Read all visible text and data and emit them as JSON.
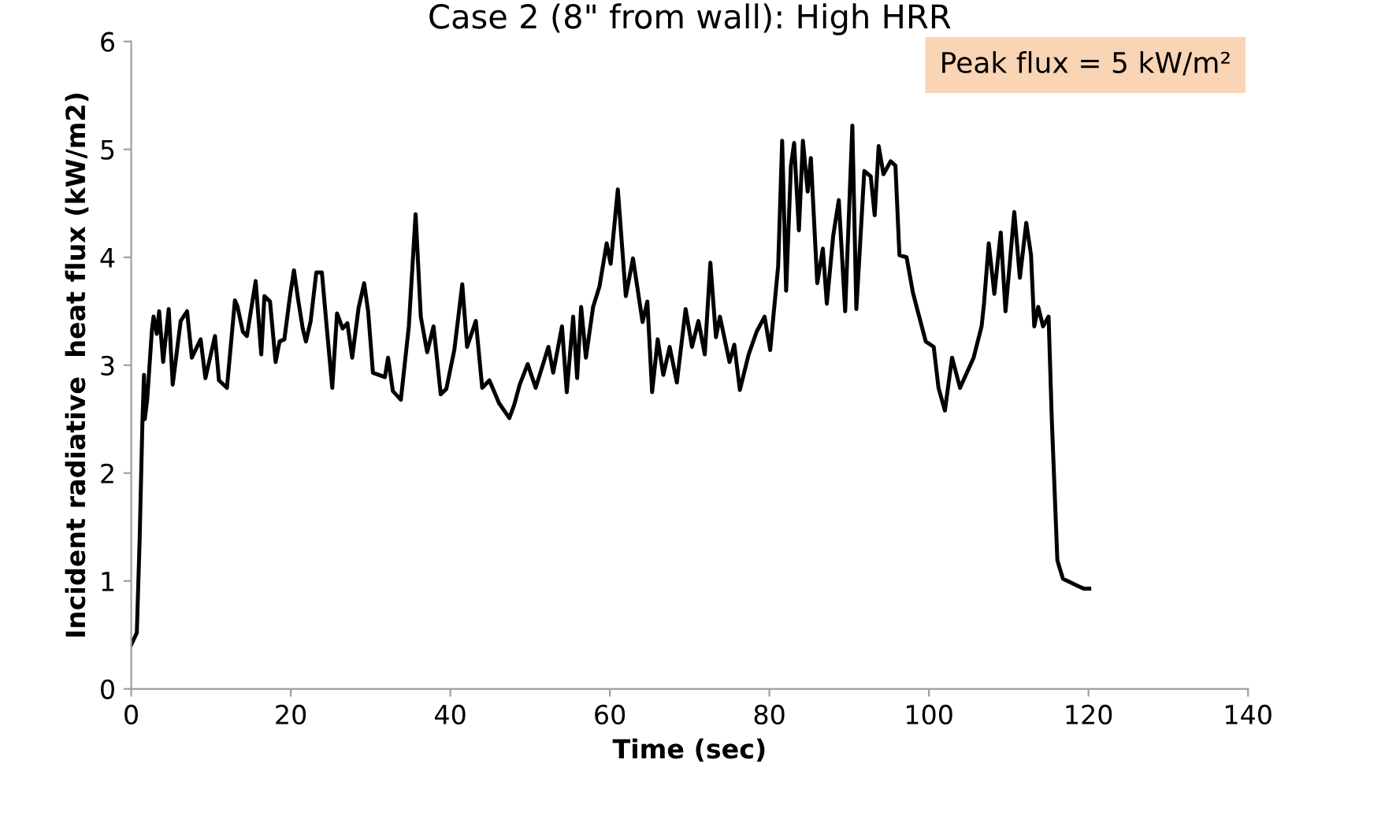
{
  "chart_data": {
    "type": "line",
    "title": "Case 2 (8\" from wall): High HRR",
    "xlabel": "Time (sec)",
    "ylabel": "Incident radiative  heat flux (kW/m2)",
    "annotations": [
      "Peak flux = 5 kW/m²"
    ],
    "xlim": [
      0,
      140
    ],
    "xticks": [
      0,
      20,
      40,
      60,
      80,
      100,
      120,
      140
    ],
    "ylim": [
      0,
      6
    ],
    "yticks": [
      0,
      1,
      2,
      3,
      4,
      5,
      6
    ],
    "grid": false,
    "marker": "none",
    "line_style": "solid",
    "series": [
      {
        "color": "#000000",
        "x": [
          0,
          0.7,
          1.05,
          1.4,
          1.6,
          1.7,
          2.0,
          2.6,
          2.8,
          3.2,
          3.5,
          4.0,
          4.7,
          5.2,
          6.2,
          7.0,
          7.6,
          8.7,
          9.3,
          10.5,
          11.0,
          12.0,
          13.0,
          13.3,
          14.0,
          14.5,
          15.6,
          16.3,
          16.7,
          17.4,
          18.1,
          18.6,
          19.2,
          19.9,
          20.4,
          20.9,
          21.5,
          21.9,
          22.5,
          23.2,
          23.9,
          24.5,
          25.2,
          25.8,
          26.5,
          27.1,
          27.7,
          28.5,
          29.2,
          29.7,
          30.3,
          31.8,
          32.2,
          32.8,
          33.8,
          34.8,
          35.65,
          36.3,
          37.1,
          37.9,
          38.8,
          39.5,
          40.5,
          41.5,
          42.1,
          43.2,
          44.0,
          44.9,
          46.1,
          47.4,
          48.0,
          48.7,
          49.7,
          50.7,
          52.3,
          52.9,
          54.0,
          54.6,
          55.4,
          55.9,
          56.4,
          57.0,
          57.9,
          58.7,
          59.6,
          60.1,
          61.0,
          62.0,
          62.9,
          64.1,
          64.7,
          65.3,
          66.0,
          66.7,
          67.5,
          68.4,
          69.5,
          70.3,
          71.1,
          71.9,
          72.6,
          73.3,
          73.8,
          75.0,
          75.6,
          76.3,
          77.4,
          78.4,
          79.4,
          80.1,
          81.1,
          81.6,
          82.1,
          82.7,
          83.1,
          83.7,
          84.2,
          84.8,
          85.2,
          86.0,
          86.7,
          87.2,
          88.0,
          88.7,
          89.5,
          90.4,
          90.9,
          91.9,
          92.7,
          93.2,
          93.7,
          94.3,
          95.2,
          95.8,
          96.3,
          97.2,
          98.0,
          98.6,
          99.6,
          100.6,
          101.2,
          102.0,
          102.9,
          103.9,
          105.6,
          106.6,
          106.9,
          107.5,
          108.2,
          109.0,
          109.6,
          110.7,
          111.4,
          112.2,
          112.8,
          113.2,
          113.7,
          114.3,
          115.0,
          115.4,
          116.1,
          116.8,
          118.8,
          119.4,
          120.1
        ],
        "values": [
          0.41,
          0.52,
          1.37,
          2.46,
          2.91,
          2.5,
          2.68,
          3.33,
          3.45,
          3.29,
          3.5,
          3.03,
          3.52,
          2.82,
          3.41,
          3.5,
          3.07,
          3.24,
          2.88,
          3.27,
          2.86,
          2.79,
          3.6,
          3.55,
          3.31,
          3.27,
          3.78,
          3.1,
          3.64,
          3.59,
          3.03,
          3.22,
          3.24,
          3.64,
          3.88,
          3.62,
          3.34,
          3.22,
          3.41,
          3.86,
          3.86,
          3.36,
          2.79,
          3.48,
          3.34,
          3.39,
          3.07,
          3.53,
          3.76,
          3.5,
          2.93,
          2.89,
          3.07,
          2.76,
          2.68,
          3.36,
          4.4,
          3.45,
          3.12,
          3.36,
          2.73,
          2.78,
          3.14,
          3.75,
          3.17,
          3.41,
          2.79,
          2.86,
          2.65,
          2.51,
          2.63,
          2.82,
          3.01,
          2.79,
          3.17,
          2.93,
          3.36,
          2.75,
          3.45,
          2.88,
          3.54,
          3.07,
          3.54,
          3.73,
          4.13,
          3.94,
          4.63,
          3.64,
          3.99,
          3.4,
          3.59,
          2.75,
          3.24,
          2.91,
          3.17,
          2.84,
          3.52,
          3.17,
          3.41,
          3.1,
          3.95,
          3.26,
          3.45,
          3.03,
          3.19,
          2.77,
          3.1,
          3.31,
          3.45,
          3.14,
          3.92,
          5.08,
          3.69,
          4.85,
          5.06,
          4.25,
          5.08,
          4.61,
          4.92,
          3.76,
          4.08,
          3.57,
          4.2,
          4.53,
          3.5,
          5.22,
          3.52,
          4.8,
          4.75,
          4.39,
          5.03,
          4.77,
          4.89,
          4.85,
          4.02,
          4.0,
          3.67,
          3.5,
          3.22,
          3.17,
          2.79,
          2.58,
          3.07,
          2.79,
          3.07,
          3.36,
          3.57,
          4.13,
          3.66,
          4.23,
          3.5,
          4.42,
          3.81,
          4.32,
          4.02,
          3.36,
          3.54,
          3.36,
          3.45,
          2.5,
          1.19,
          1.02,
          0.95,
          0.93,
          0.93
        ]
      }
    ]
  }
}
